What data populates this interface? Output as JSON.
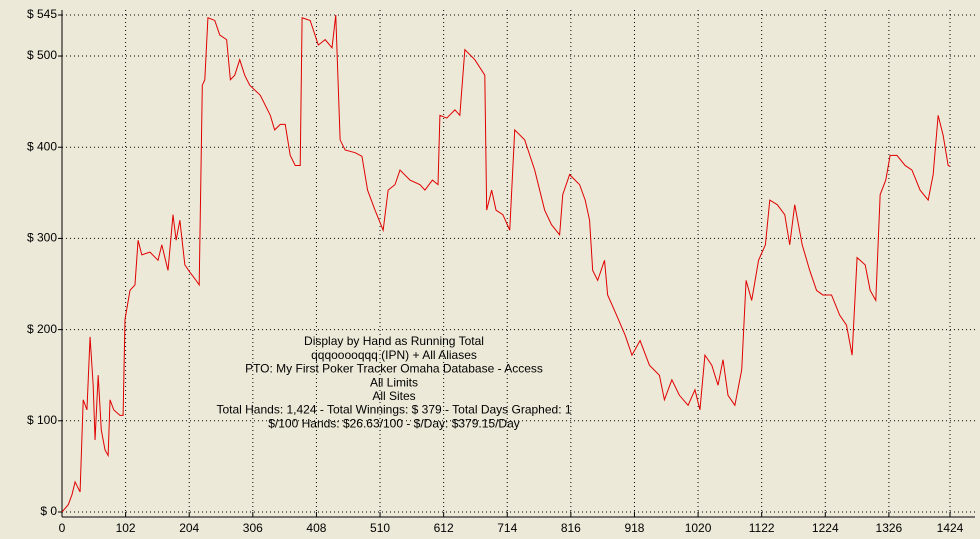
{
  "chart_data": {
    "type": "line",
    "x": [
      0,
      10,
      16,
      21,
      29,
      34,
      40,
      45,
      50,
      53,
      58,
      63,
      69,
      74,
      77,
      83,
      93,
      98,
      101,
      109,
      117,
      122,
      128,
      141,
      154,
      160,
      170,
      178,
      183,
      189,
      197,
      205,
      215,
      220,
      225,
      229,
      234,
      245,
      253,
      264,
      270,
      277,
      285,
      293,
      301,
      318,
      334,
      341,
      350,
      358,
      366,
      374,
      382,
      385,
      398,
      411,
      422,
      433,
      439,
      446,
      454,
      470,
      481,
      490,
      502,
      515,
      523,
      534,
      542,
      558,
      574,
      582,
      594,
      603,
      606,
      617,
      630,
      638,
      646,
      662,
      678,
      681,
      689,
      696,
      707,
      718,
      726,
      742,
      758,
      774,
      785,
      798,
      803,
      814,
      830,
      839,
      846,
      851,
      859,
      870,
      875,
      886,
      903,
      914,
      927,
      942,
      958,
      966,
      978,
      990,
      1004,
      1015,
      1023,
      1031,
      1042,
      1052,
      1060,
      1068,
      1079,
      1090,
      1097,
      1106,
      1117,
      1128,
      1135,
      1147,
      1159,
      1167,
      1175,
      1187,
      1199,
      1210,
      1220,
      1234,
      1247,
      1258,
      1267,
      1275,
      1288,
      1296,
      1305,
      1312,
      1321,
      1328,
      1339,
      1352,
      1363,
      1376,
      1389,
      1397,
      1405,
      1413,
      1421,
      1424
    ],
    "series": [
      {
        "name": "qqqooooqqq (IPN) + All Aliases",
        "color": "#e00000",
        "values": [
          0,
          8,
          19,
          33,
          22,
          123,
          112,
          192,
          139,
          79,
          150,
          90,
          68,
          62,
          123,
          112,
          106,
          106,
          211,
          243,
          249,
          298,
          282,
          285,
          276,
          293,
          265,
          326,
          298,
          320,
          271,
          263,
          254,
          249,
          468,
          474,
          542,
          539,
          523,
          518,
          474,
          479,
          496,
          479,
          468,
          457,
          435,
          419,
          425,
          425,
          391,
          380,
          380,
          542,
          539,
          512,
          518,
          509,
          545,
          408,
          397,
          394,
          390,
          353,
          331,
          309,
          353,
          359,
          375,
          364,
          359,
          353,
          364,
          359,
          435,
          432,
          441,
          435,
          507,
          496,
          479,
          331,
          353,
          331,
          326,
          309,
          419,
          408,
          375,
          331,
          315,
          304,
          348,
          370,
          359,
          342,
          320,
          265,
          254,
          276,
          238,
          221,
          194,
          172,
          188,
          161,
          150,
          123,
          145,
          128,
          117,
          134,
          112,
          172,
          161,
          139,
          167,
          128,
          117,
          156,
          254,
          232,
          276,
          293,
          342,
          337,
          326,
          293,
          337,
          293,
          265,
          243,
          238,
          238,
          216,
          205,
          172,
          279,
          271,
          243,
          232,
          348,
          364,
          391,
          391,
          380,
          375,
          353,
          342,
          370,
          435,
          413,
          380,
          379
        ]
      }
    ],
    "xlim": [
      0,
      1424
    ],
    "xticks": [
      0,
      102,
      204,
      306,
      408,
      510,
      612,
      714,
      816,
      918,
      1020,
      1122,
      1224,
      1326,
      1424
    ],
    "ylim": [
      0,
      545
    ],
    "yticks": [
      {
        "value": 0,
        "label": "$ 0"
      },
      {
        "value": 100,
        "label": "$ 100"
      },
      {
        "value": 200,
        "label": "$ 200"
      },
      {
        "value": 300,
        "label": "$ 300"
      },
      {
        "value": 400,
        "label": "$ 400"
      },
      {
        "value": 500,
        "label": "$ 500"
      },
      {
        "value": 545,
        "label": "$ 545"
      }
    ],
    "grid": true,
    "annotations": [
      "Display by Hand as Running Total",
      "qqqooooqqq (IPN) + All Aliases",
      "PTO: My First Poker Tracker Omaha Database - Access",
      "All Limits",
      "All Sites",
      "Total Hands: 1,424 - Total Winnings: $ 379 - Total Days Graphed: 1",
      "$/100 Hands: $26.63/100 - $/Day: $379.15/Day"
    ]
  }
}
